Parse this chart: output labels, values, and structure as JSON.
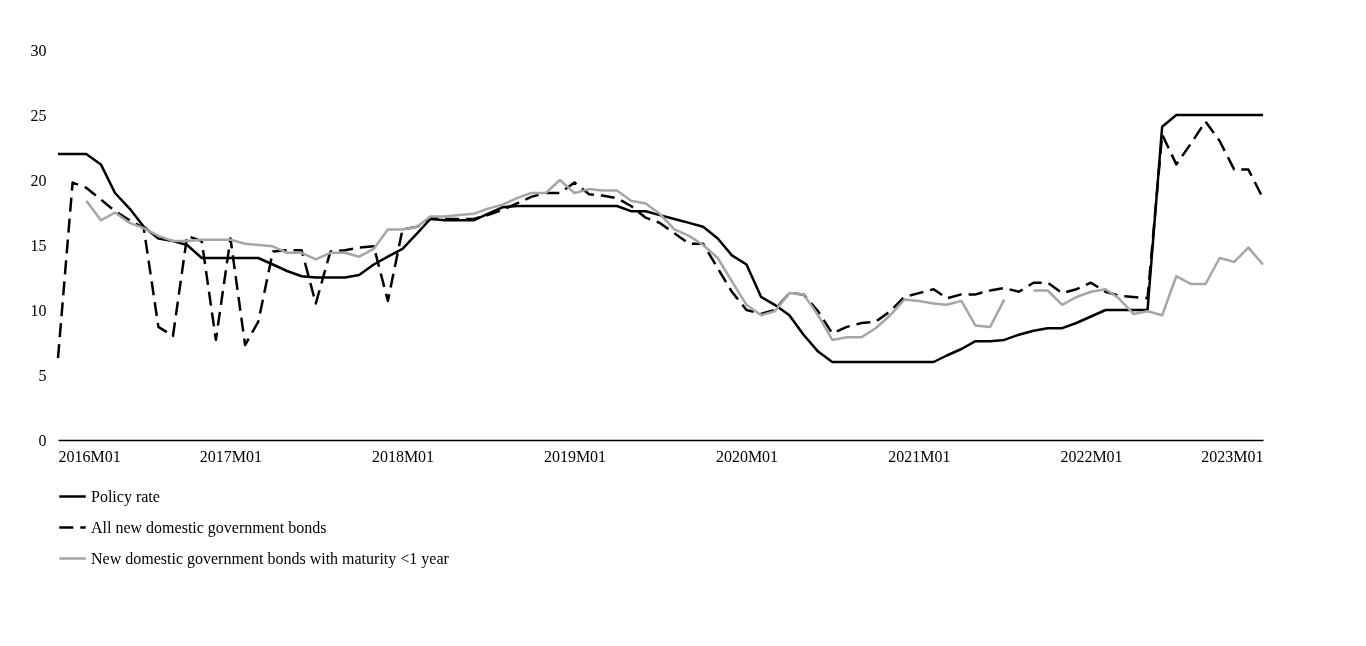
{
  "chart_data": {
    "type": "line",
    "x": [
      "2016-01",
      "2016-02",
      "2016-03",
      "2016-04",
      "2016-05",
      "2016-06",
      "2016-07",
      "2016-08",
      "2016-09",
      "2016-10",
      "2016-11",
      "2016-12",
      "2017-01",
      "2017-02",
      "2017-03",
      "2017-04",
      "2017-05",
      "2017-06",
      "2017-07",
      "2017-08",
      "2017-09",
      "2017-10",
      "2017-11",
      "2017-12",
      "2018-01",
      "2018-02",
      "2018-03",
      "2018-04",
      "2018-05",
      "2018-06",
      "2018-07",
      "2018-08",
      "2018-09",
      "2018-10",
      "2018-11",
      "2018-12",
      "2019-01",
      "2019-02",
      "2019-03",
      "2019-04",
      "2019-05",
      "2019-06",
      "2019-07",
      "2019-08",
      "2019-09",
      "2019-10",
      "2019-11",
      "2019-12",
      "2020-01",
      "2020-02",
      "2020-03",
      "2020-04",
      "2020-05",
      "2020-06",
      "2020-07",
      "2020-08",
      "2020-09",
      "2020-10",
      "2020-11",
      "2020-12",
      "2021-01",
      "2021-02",
      "2021-03",
      "2021-04",
      "2021-05",
      "2021-06",
      "2021-07",
      "2021-08",
      "2021-09",
      "2021-10",
      "2021-11",
      "2021-12",
      "2022-01",
      "2022-02",
      "2022-03",
      "2022-04",
      "2022-05",
      "2022-06",
      "2022-07",
      "2022-08",
      "2022-09",
      "2022-10",
      "2022-11",
      "2022-12",
      "2023-01"
    ],
    "series": [
      {
        "name": "Policy rate",
        "color": "#000000",
        "line_style": "solid",
        "values": [
          22,
          22,
          22,
          21.2,
          19,
          17.8,
          16.4,
          15.5,
          15.3,
          15,
          14,
          14,
          14,
          14,
          14,
          13.5,
          13,
          12.6,
          12.5,
          12.5,
          12.5,
          12.7,
          13.5,
          14.1,
          14.7,
          15.9,
          17,
          16.9,
          16.9,
          16.9,
          17.4,
          17.9,
          18,
          18,
          18,
          18,
          18,
          18,
          18,
          18,
          17.6,
          17.6,
          17.3,
          17,
          16.7,
          16.4,
          15.5,
          14.2,
          13.5,
          11,
          10.4,
          9.6,
          8.1,
          6.8,
          6,
          6,
          6,
          6,
          6,
          6,
          6,
          6,
          6.5,
          7,
          7.6,
          7.6,
          7.7,
          8.1,
          8.4,
          8.6,
          8.6,
          9,
          9.5,
          10,
          10,
          10,
          10,
          24.1,
          25,
          25,
          25,
          25,
          25,
          25,
          25
        ]
      },
      {
        "name": "All new domestic government bonds",
        "color": "#000000",
        "line_style": "dashed",
        "values": [
          6.3,
          19.8,
          19.4,
          18.5,
          17.6,
          16.9,
          16.3,
          8.7,
          8,
          15.7,
          15.3,
          7.7,
          15.5,
          7.3,
          9.1,
          14.5,
          14.6,
          14.6,
          10.5,
          14.5,
          14.6,
          14.8,
          14.9,
          10.7,
          16.2,
          16.4,
          17.1,
          17,
          17,
          17,
          17.3,
          17.7,
          18.2,
          18.7,
          19,
          19,
          19.8,
          18.9,
          18.8,
          18.6,
          18,
          17.1,
          16.7,
          15.9,
          15.1,
          15.1,
          13.2,
          11.4,
          10,
          9.7,
          10,
          11.3,
          11.2,
          9.9,
          8.2,
          8.7,
          9,
          9.1,
          9.9,
          11,
          11.3,
          11.6,
          10.9,
          11.2,
          11.2,
          11.5,
          11.7,
          11.4,
          12.1,
          12.1,
          11.3,
          11.6,
          12.1,
          11.4,
          11.1,
          11,
          10.9,
          23.5,
          21.2,
          22.8,
          24.5,
          23,
          20.8,
          20.8,
          18.6
        ]
      },
      {
        "name": "New domestic government bonds with maturity <1 year",
        "color": "#a6a6a6",
        "line_style": "solid",
        "values": [
          null,
          null,
          18.4,
          16.9,
          17.5,
          16.7,
          16.3,
          15.7,
          15.3,
          15.3,
          15.4,
          15.4,
          15.4,
          15.1,
          15,
          14.9,
          14.4,
          14.4,
          13.9,
          14.4,
          14.4,
          14.1,
          14.7,
          16.2,
          16.2,
          16.4,
          17.2,
          17.2,
          17.3,
          17.4,
          17.8,
          18.1,
          18.6,
          19,
          19,
          20,
          19,
          19.3,
          19.2,
          19.2,
          18.4,
          18.2,
          17.4,
          16.2,
          15.7,
          15,
          14,
          12.2,
          10.4,
          9.6,
          9.9,
          11.3,
          11.2,
          9.6,
          7.7,
          7.9,
          7.9,
          8.6,
          9.6,
          10.8,
          10.7,
          10.5,
          10.4,
          10.7,
          8.8,
          8.7,
          10.8,
          null,
          11.5,
          11.5,
          10.4,
          11,
          11.4,
          11.6,
          10.9,
          9.7,
          9.9,
          9.6,
          12.6,
          12,
          12,
          14,
          13.7,
          14.8,
          13.5
        ]
      }
    ],
    "xlim": [
      "2016-01",
      "2023-01"
    ],
    "xticks": [
      {
        "value": "2016-01",
        "label": "2016M01"
      },
      {
        "value": "2017-01",
        "label": "2017M01"
      },
      {
        "value": "2018-01",
        "label": "2018M01"
      },
      {
        "value": "2019-01",
        "label": "2019M01"
      },
      {
        "value": "2020-01",
        "label": "2020M01"
      },
      {
        "value": "2021-01",
        "label": "2021M01"
      },
      {
        "value": "2022-01",
        "label": "2022M01"
      },
      {
        "value": "2023-01",
        "label": "2023M01"
      }
    ],
    "ylim": [
      0,
      30
    ],
    "yticks": [
      0,
      5,
      10,
      15,
      20,
      25,
      30
    ],
    "legend": "bottom",
    "grid": false
  }
}
